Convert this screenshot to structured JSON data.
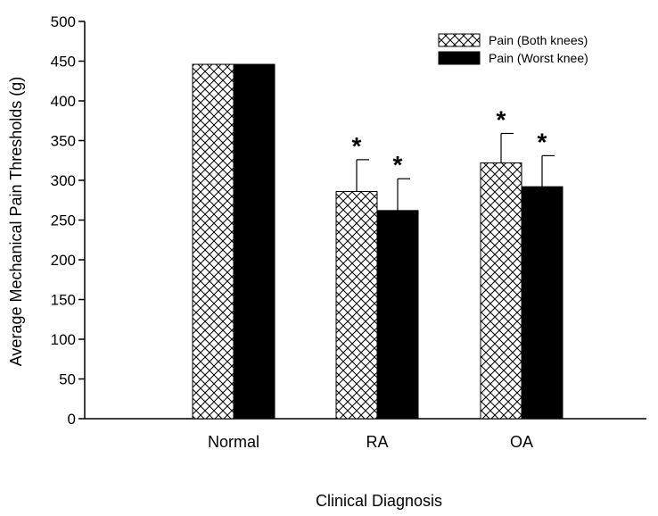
{
  "chart_data": {
    "type": "bar",
    "title": "",
    "xlabel": "Clinical Diagnosis",
    "ylabel": "Average Mechanical Pain Thresholds (g)",
    "categories": [
      "Normal",
      "RA",
      "OA"
    ],
    "ylim": [
      0,
      500
    ],
    "yticks": [
      0,
      50,
      100,
      150,
      200,
      250,
      300,
      350,
      400,
      450,
      500
    ],
    "grid": false,
    "legend_position": "top-right",
    "series": [
      {
        "name": "Pain (Both knees)",
        "pattern": "crosshatch",
        "color": "#ffffff",
        "values": [
          446,
          286,
          322
        ],
        "error": [
          null,
          40,
          37
        ],
        "significance": [
          "",
          "*",
          "*"
        ]
      },
      {
        "name": "Pain (Worst knee)",
        "pattern": "solid",
        "color": "#000000",
        "values": [
          446,
          262,
          292
        ],
        "error": [
          null,
          40,
          39
        ],
        "significance": [
          "",
          "*",
          "*"
        ]
      }
    ]
  }
}
